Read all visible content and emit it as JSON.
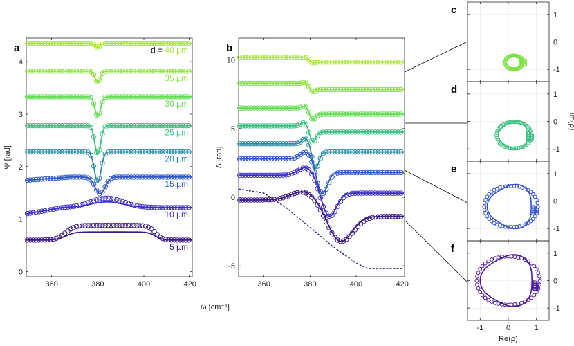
{
  "panel_labels": {
    "a": "a",
    "b": "b",
    "c": "c",
    "d": "d",
    "e": "e",
    "f": "f"
  },
  "legend_prefix": "d = ",
  "shared_xlabel": "ω [cm⁻¹]",
  "chart_data": [
    {
      "id": "a",
      "type": "line",
      "ylabel": "Ψ [rad]",
      "xlim": [
        349,
        421
      ],
      "ylim": [
        -0.1,
        4.45
      ],
      "xticks": [
        360,
        380,
        400,
        420
      ],
      "yticks": [
        0,
        1,
        2,
        3,
        4
      ],
      "grid": false,
      "series": [
        {
          "name": "40 µm",
          "color": "#a8e633",
          "base": 4.35,
          "offset": 4.35,
          "dip": 0.08,
          "dipWidth": 1.5,
          "bump": 0.0,
          "model": "dip"
        },
        {
          "name": "35 µm",
          "color": "#8ee33c",
          "base": 3.82,
          "offset": 3.82,
          "dip": 0.22,
          "dipWidth": 1.6,
          "bump": 0.0,
          "model": "dip"
        },
        {
          "name": "30 µm",
          "color": "#62de52",
          "base": 3.33,
          "offset": 3.33,
          "dip": 0.38,
          "dipWidth": 1.7,
          "bump": 0.0,
          "model": "dip"
        },
        {
          "name": "25 µm",
          "color": "#3cbf80",
          "base": 2.78,
          "offset": 2.78,
          "dip": 0.55,
          "dipWidth": 1.8,
          "bump": 0.0,
          "model": "dip"
        },
        {
          "name": "20 µm",
          "color": "#2c8ca6",
          "base": 2.28,
          "offset": 2.28,
          "dip": 0.58,
          "dipWidth": 2.0,
          "bump": 0.0,
          "model": "dip"
        },
        {
          "name": "15 µm",
          "color": "#2f57c8",
          "base": 1.8,
          "offset": 1.8,
          "dip": 0.32,
          "dipWidth": 3.0,
          "bump": 0.08,
          "model": "broad"
        },
        {
          "name": "10 µm",
          "color": "#3b2fc9",
          "base": 1.22,
          "offset": 1.22,
          "dip": 0.0,
          "dipWidth": 6.0,
          "bump": 0.18,
          "model": "hump"
        },
        {
          "name": "5 µm",
          "color": "#3b1a86",
          "base": 0.6,
          "offset": 0.6,
          "dip": 0.0,
          "dipWidth": 8.0,
          "bump": 0.28,
          "model": "plateau"
        }
      ]
    },
    {
      "id": "b",
      "type": "line",
      "ylabel": "Δ [rad]",
      "xlim": [
        349,
        421
      ],
      "ylim": [
        -5.8,
        11.6
      ],
      "xticks": [
        360,
        380,
        400,
        420
      ],
      "yticks": [
        -5,
        0,
        5,
        10
      ],
      "grid": false,
      "series": [
        {
          "name": "40 µm",
          "color": "#a8e633",
          "offset": 10.2,
          "step": -0.35,
          "center": 380,
          "width": 1.5,
          "amp": 0.2
        },
        {
          "name": "35 µm",
          "color": "#8ee33c",
          "offset": 8.3,
          "step": -0.45,
          "center": 380,
          "width": 1.6,
          "amp": 0.5
        },
        {
          "name": "30 µm",
          "color": "#62de52",
          "offset": 6.5,
          "step": -0.45,
          "center": 380,
          "width": 1.8,
          "amp": 0.9
        },
        {
          "name": "25 µm",
          "color": "#3cbf80",
          "offset": 5.2,
          "step": -0.45,
          "center": 380,
          "width": 2.0,
          "amp": 1.5
        },
        {
          "name": "20 µm",
          "color": "#2c8ca6",
          "offset": 3.9,
          "step": -0.6,
          "center": 381,
          "width": 2.2,
          "amp": 2.4
        },
        {
          "name": "15 µm",
          "color": "#2f57c8",
          "offset": 2.8,
          "step": -1.0,
          "center": 383,
          "width": 3.5,
          "amp": 3.2
        },
        {
          "name": "10 µm",
          "color": "#3b2fc9",
          "offset": 1.6,
          "step": -1.3,
          "center": 385,
          "width": 5.0,
          "amp": 3.6
        },
        {
          "name": "5 µm",
          "color": "#3b1a86",
          "offset": -0.2,
          "step": -1.2,
          "center": 388,
          "width": 8.0,
          "amp": 3.8
        }
      ],
      "extra_series": {
        "color": "#3b1a86",
        "points": [
          [
            349,
            0.6
          ],
          [
            360,
            0.3
          ],
          [
            370,
            -0.8
          ],
          [
            380,
            -2.2
          ],
          [
            390,
            -3.6
          ],
          [
            400,
            -4.8
          ],
          [
            405,
            -5.2
          ],
          [
            420,
            -5.2
          ]
        ]
      }
    },
    {
      "id": "c",
      "type": "scatter",
      "xlabel": "",
      "ylabel": "",
      "xlim": [
        -1.45,
        1.45
      ],
      "ylim": [
        -1.45,
        1.45
      ],
      "xticks": [
        -1,
        0,
        1
      ],
      "yticks": [
        -1,
        0,
        1
      ],
      "grid": true,
      "series": [
        {
          "color": "#7fe046",
          "cx": 0.2,
          "cy": -0.75,
          "r": 0.28,
          "mode": "spiral-small"
        }
      ]
    },
    {
      "id": "d",
      "type": "scatter",
      "xlabel": "",
      "ylabel": "Im(ρ)",
      "xlim": [
        -1.45,
        1.45
      ],
      "ylim": [
        -1.45,
        1.45
      ],
      "xticks": [
        -1,
        0,
        1
      ],
      "yticks": [
        -1,
        0,
        1
      ],
      "grid": true,
      "series": [
        {
          "color": "#3cbf80",
          "cx": 0.2,
          "cy": -0.5,
          "r": 0.55,
          "mode": "spiral-mid"
        }
      ]
    },
    {
      "id": "e",
      "type": "scatter",
      "xlabel": "",
      "ylabel": "",
      "xlim": [
        -1.45,
        1.45
      ],
      "ylim": [
        -1.45,
        1.45
      ],
      "xticks": [
        -1,
        0,
        1
      ],
      "yticks": [
        -1,
        0,
        1
      ],
      "grid": true,
      "series": [
        {
          "color": "#2f4fd0",
          "cx": 0.1,
          "cy": -0.2,
          "r": 0.85,
          "mode": "spiral-large"
        }
      ]
    },
    {
      "id": "f",
      "type": "scatter",
      "xlabel": "Re(ρ)",
      "ylabel": "",
      "xlim": [
        -1.45,
        1.45
      ],
      "ylim": [
        -1.45,
        1.45
      ],
      "xticks": [
        -1,
        0,
        1
      ],
      "yticks": [
        -1,
        0,
        1
      ],
      "grid": true,
      "series": [
        {
          "color": "#4a1a9a",
          "cx": 0.0,
          "cy": 0.0,
          "r": 1.0,
          "mode": "spiral-full"
        }
      ]
    }
  ]
}
